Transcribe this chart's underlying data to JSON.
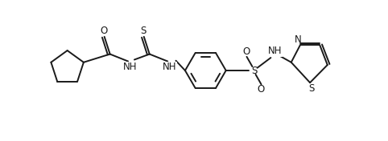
{
  "bg_color": "#ffffff",
  "line_color": "#1a1a1a",
  "line_width": 1.4,
  "font_size": 8.5,
  "font_family": "DejaVu Sans",
  "xlim": [
    0,
    9.8
  ],
  "ylim": [
    0.5,
    4.8
  ],
  "figsize": [
    4.82,
    1.76
  ],
  "dpi": 100
}
